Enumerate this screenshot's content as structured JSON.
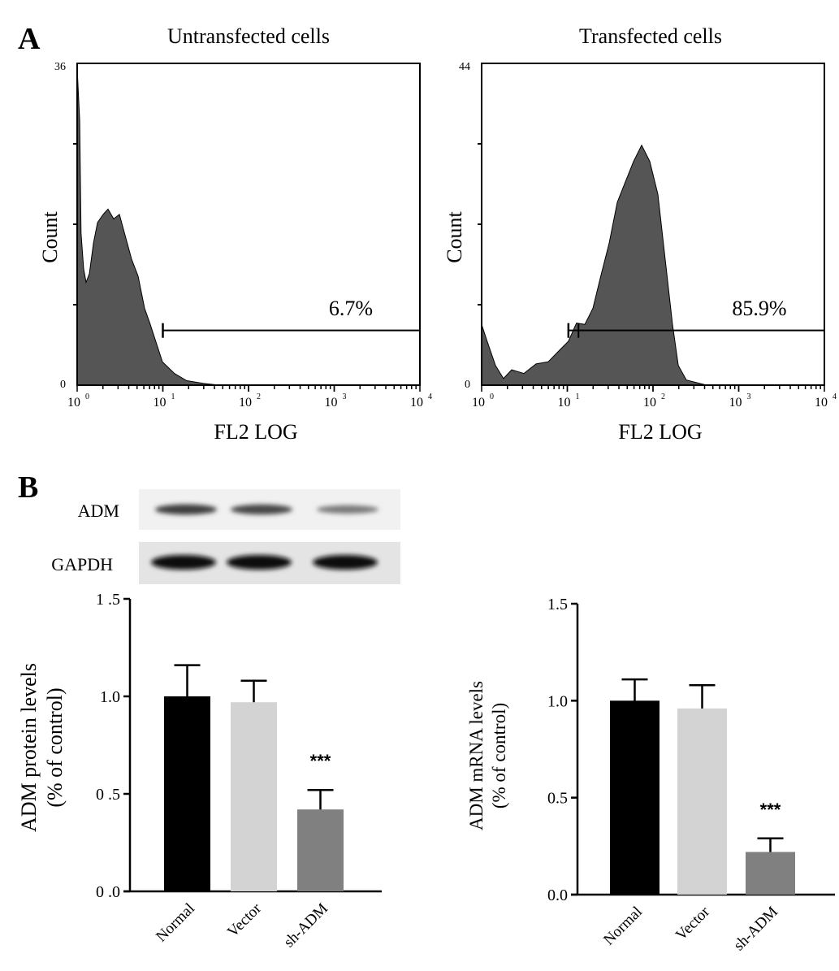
{
  "panel_labels": {
    "a": "A",
    "b": "B"
  },
  "colors": {
    "histogram_fill": "#555555",
    "normal": "#000000",
    "vector": "#d3d3d3",
    "sh_adm": "#808080"
  },
  "blot": {
    "rows": [
      "ADM",
      "GAPDH"
    ],
    "band_intensity": {
      "ADM": [
        0.85,
        0.8,
        0.55
      ],
      "GAPDH": [
        1,
        1,
        1
      ]
    }
  },
  "chart_data": [
    {
      "type": "area",
      "title": "Untransfected cells",
      "xlabel": "FL2 LOG",
      "ylabel": "Count",
      "xscale": "log",
      "xlim": [
        1,
        10000
      ],
      "ylim": [
        0,
        36
      ],
      "xtick_labels": [
        "10",
        "10",
        "10",
        "10",
        "10"
      ],
      "xtick_exponents": [
        "0",
        "1",
        "2",
        "3",
        "4"
      ],
      "ytick_labels": [
        "0",
        "36"
      ],
      "gate": {
        "from": 10,
        "to": 10000,
        "label": "6.7%"
      },
      "x": [
        1,
        1.07,
        1.11,
        1.19,
        1.27,
        1.39,
        1.55,
        1.73,
        2.01,
        2.29,
        2.67,
        3.11,
        3.71,
        4.32,
        5.14,
        6.12,
        7.13,
        7.95,
        9.89,
        13.7,
        19.0,
        29.4,
        45.6
      ],
      "y": [
        35.5,
        29.6,
        17,
        13,
        11.5,
        12.5,
        15.9,
        18.2,
        19.1,
        19.7,
        18.6,
        19.1,
        16.4,
        14.1,
        12.2,
        8.6,
        6.8,
        5.4,
        2.6,
        1.3,
        0.5,
        0.2,
        0
      ]
    },
    {
      "type": "area",
      "title": "Transfected cells",
      "xlabel": "FL2 LOG",
      "ylabel": "Count",
      "xscale": "log",
      "xlim": [
        1,
        10000
      ],
      "ylim": [
        0,
        44
      ],
      "xtick_labels": [
        "10",
        "10",
        "10",
        "10",
        "10"
      ],
      "xtick_exponents": [
        "0",
        "1",
        "2",
        "3",
        "4"
      ],
      "ytick_labels": [
        "0",
        "44"
      ],
      "gate": {
        "from": 10.3,
        "to": 10000,
        "label": "85.9%"
      },
      "x": [
        1,
        1.16,
        1.45,
        1.8,
        2.24,
        3.11,
        4.32,
        5.99,
        8.3,
        10.3,
        12.8,
        16.0,
        19.9,
        24.7,
        30.8,
        38.3,
        47.6,
        59.3,
        73.7,
        91.6,
        114,
        142,
        169,
        197,
        245,
        423
      ],
      "y": [
        8.3,
        6.0,
        2.7,
        0.9,
        2.1,
        1.6,
        2.9,
        3.2,
        4.9,
        6.0,
        8.5,
        8.3,
        10.5,
        15.0,
        19.4,
        25.0,
        27.8,
        30.6,
        32.8,
        30.6,
        26.1,
        16.1,
        8.3,
        2.7,
        0.7,
        0
      ]
    },
    {
      "type": "bar",
      "categories": [
        "Normal",
        "Vector",
        "sh-ADM"
      ],
      "values": [
        1.0,
        0.97,
        0.42
      ],
      "errors": [
        0.16,
        0.11,
        0.1
      ],
      "ylabel_lines": [
        "ADM protein  levels",
        "(% of control)"
      ],
      "ylim": [
        0,
        1.5
      ],
      "ytick_values": [
        0,
        0.5,
        1.0,
        1.5
      ],
      "ytick_labels": [
        "0 .0",
        "0 .5",
        "1.0",
        "1 .5"
      ],
      "annotation": {
        "category": "sh-ADM",
        "text": "***"
      }
    },
    {
      "type": "bar",
      "categories": [
        "Normal",
        "Vector",
        "sh-ADM"
      ],
      "values": [
        1.0,
        0.96,
        0.22
      ],
      "errors": [
        0.11,
        0.12,
        0.07
      ],
      "ylabel_lines": [
        "ADM mRNA levels",
        "(% of control)"
      ],
      "ylim": [
        0,
        1.5
      ],
      "ytick_values": [
        0,
        0.5,
        1.0,
        1.5
      ],
      "ytick_labels": [
        "0.0",
        "0.5",
        "1.0",
        "1.5"
      ],
      "annotation": {
        "category": "sh-ADM",
        "text": "***"
      }
    }
  ]
}
